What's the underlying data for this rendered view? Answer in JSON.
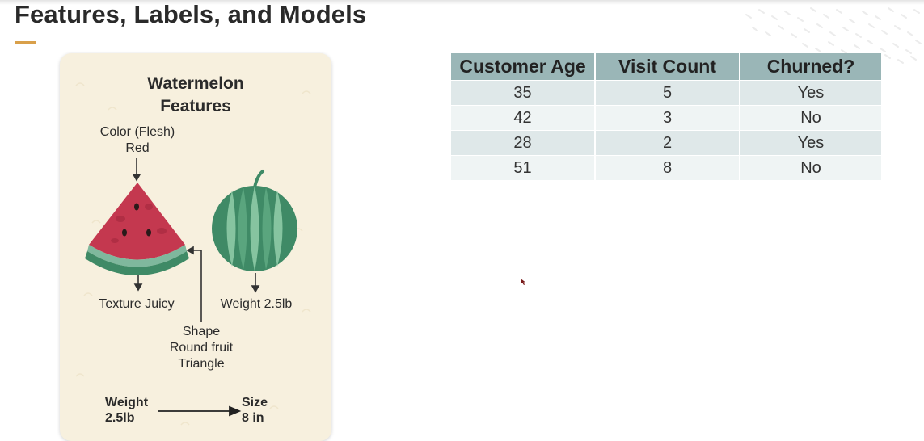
{
  "slide": {
    "title": "Features, Labels, and Models",
    "accent_color": "#d9a04a"
  },
  "watermelon_card": {
    "title_line1": "Watermelon",
    "title_line2": "Features",
    "color_label_line1": "Color (Flesh)",
    "color_label_line2": "Red",
    "texture_label": "Texture Juicy",
    "weight_label": "Weight 2.5lb",
    "shape_label_line1": "Shape",
    "shape_label_line2": "Round fruit",
    "shape_label_line3": "Triangle",
    "mapping": {
      "input_line1": "Weight",
      "input_line2": "2.5lb",
      "output_line1": "Size",
      "output_line2": "8 in"
    },
    "icons": [
      "watermelon-slice-icon",
      "whole-watermelon-icon",
      "arrow-icon"
    ]
  },
  "table": {
    "columns": [
      "Customer Age",
      "Visit Count",
      "Churned?"
    ],
    "rows": [
      [
        "35",
        "5",
        "Yes"
      ],
      [
        "42",
        "3",
        "No"
      ],
      [
        "28",
        "2",
        "Yes"
      ],
      [
        "51",
        "8",
        "No"
      ]
    ],
    "header_color": "#9ab6b7"
  }
}
